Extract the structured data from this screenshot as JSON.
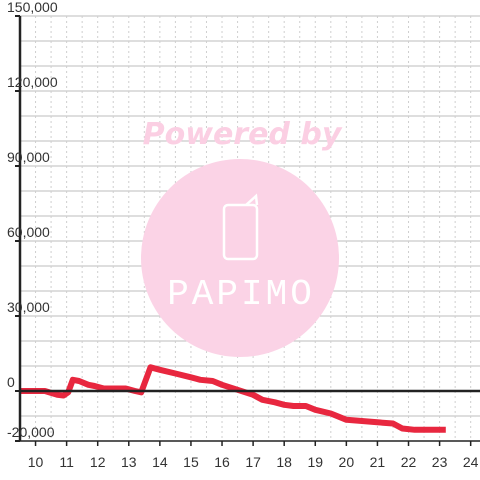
{
  "colors": {
    "series": "#e8273f",
    "axis": "#222222",
    "grid_major": "#bdbdbd",
    "grid_minor": "#cfcfcf",
    "watermark": "#fbd3e6",
    "watermark_text": "#fbcfe3"
  },
  "watermark": {
    "icon": "phone-icon",
    "line1": "Powered by",
    "line2": "PAPIMO"
  },
  "chart_data": {
    "type": "line",
    "title": "",
    "xlabel": "",
    "ylabel": "",
    "xlim": [
      9.5,
      24.3
    ],
    "ylim": [
      -20000,
      150000
    ],
    "grid": true,
    "x_ticks": [
      10,
      11,
      12,
      13,
      14,
      15,
      16,
      17,
      18,
      19,
      20,
      21,
      22,
      23,
      24
    ],
    "y_ticks": [
      -20000,
      0,
      30000,
      60000,
      90000,
      120000,
      150000
    ],
    "x_tick_labels": [
      "10",
      "11",
      "12",
      "13",
      "14",
      "15",
      "16",
      "17",
      "18",
      "19",
      "20",
      "21",
      "22",
      "23",
      "24"
    ],
    "y_tick_labels": [
      "-20,000",
      "0",
      "30,000",
      "60,000",
      "90,000",
      "120,000",
      "150,000"
    ],
    "series": [
      {
        "name": "",
        "points": [
          [
            9.5,
            0
          ],
          [
            10.0,
            0
          ],
          [
            10.3,
            0
          ],
          [
            10.7,
            -1500
          ],
          [
            10.9,
            -1800
          ],
          [
            11.05,
            -500
          ],
          [
            11.2,
            4500
          ],
          [
            11.4,
            4000
          ],
          [
            11.7,
            2500
          ],
          [
            11.9,
            2000
          ],
          [
            12.2,
            1000
          ],
          [
            12.5,
            1000
          ],
          [
            12.9,
            1000
          ],
          [
            13.2,
            0
          ],
          [
            13.4,
            -500
          ],
          [
            13.7,
            9500
          ],
          [
            14.0,
            8500
          ],
          [
            14.5,
            7000
          ],
          [
            15.0,
            5500
          ],
          [
            15.3,
            4500
          ],
          [
            15.7,
            4000
          ],
          [
            16.0,
            2500
          ],
          [
            16.5,
            500
          ],
          [
            17.0,
            -1500
          ],
          [
            17.3,
            -3500
          ],
          [
            17.7,
            -4500
          ],
          [
            18.0,
            -5500
          ],
          [
            18.3,
            -6000
          ],
          [
            18.7,
            -6000
          ],
          [
            19.0,
            -7500
          ],
          [
            19.5,
            -9000
          ],
          [
            20.0,
            -11500
          ],
          [
            20.5,
            -12000
          ],
          [
            21.0,
            -12500
          ],
          [
            21.5,
            -13000
          ],
          [
            21.8,
            -15000
          ],
          [
            22.2,
            -15500
          ],
          [
            22.7,
            -15500
          ],
          [
            23.2,
            -15500
          ]
        ]
      }
    ]
  }
}
